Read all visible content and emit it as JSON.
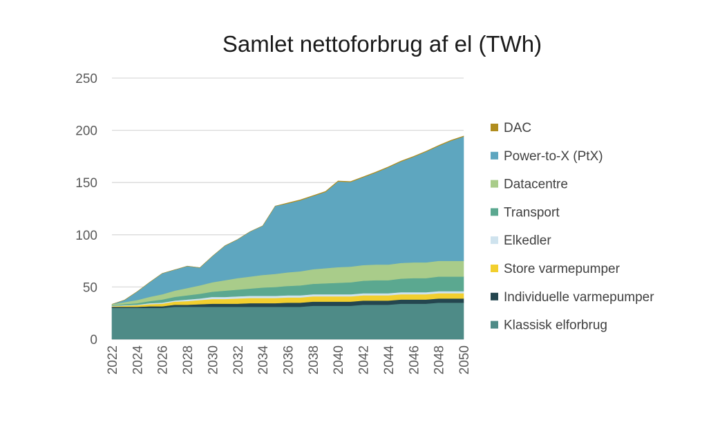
{
  "chart_data": {
    "type": "area",
    "stacked": true,
    "title": "Samlet nettoforbrug af el (TWh)",
    "xlabel": "",
    "ylabel": "",
    "x": [
      2022,
      2023,
      2024,
      2025,
      2026,
      2027,
      2028,
      2029,
      2030,
      2031,
      2032,
      2033,
      2034,
      2035,
      2036,
      2037,
      2038,
      2039,
      2040,
      2041,
      2042,
      2043,
      2044,
      2045,
      2046,
      2047,
      2048,
      2049,
      2050
    ],
    "x_tick_labels": [
      "2022",
      "2024",
      "2026",
      "2028",
      "2030",
      "2032",
      "2034",
      "2036",
      "2038",
      "2040",
      "2042",
      "2044",
      "2046",
      "2048",
      "2050"
    ],
    "ylim": [
      0,
      250
    ],
    "y_ticks": [
      0,
      50,
      100,
      150,
      200,
      250
    ],
    "grid": "horizontal",
    "legend_position": "right",
    "series": [
      {
        "name": "Klassisk elforbrug",
        "color": "#4e8b87",
        "values": [
          30,
          30,
          30,
          30,
          30,
          31,
          31,
          31,
          31,
          31,
          31,
          31,
          31,
          31,
          31,
          31,
          32,
          32,
          32,
          32,
          33,
          33,
          33,
          34,
          34,
          34,
          35,
          35,
          35
        ]
      },
      {
        "name": "Individuelle varmepumper",
        "color": "#24464f",
        "values": [
          1,
          1,
          1,
          1.5,
          1.5,
          2,
          2,
          2.5,
          3,
          3,
          3,
          3.5,
          3.5,
          3.5,
          4,
          4,
          4,
          4,
          4,
          4,
          4,
          4,
          4,
          4,
          4,
          4,
          4,
          4,
          4
        ]
      },
      {
        "name": "Store varmepumper",
        "color": "#f2cf2e",
        "values": [
          0.5,
          1,
          1.5,
          2,
          2.5,
          3,
          3.5,
          4,
          4.5,
          4.5,
          5,
          5,
          5,
          5,
          5,
          5,
          5,
          5,
          5,
          5,
          5,
          5,
          5,
          5,
          5,
          5,
          5,
          5,
          5
        ]
      },
      {
        "name": "Elkedler",
        "color": "#cfe3ee",
        "values": [
          0.5,
          0.5,
          0.5,
          1,
          1,
          1,
          1.5,
          1.5,
          2,
          2,
          2,
          2,
          2,
          2,
          2,
          2,
          2,
          2,
          2,
          2,
          2,
          2,
          2,
          2,
          2,
          2,
          2,
          2,
          2
        ]
      },
      {
        "name": "Transport",
        "color": "#5ba890",
        "values": [
          0.5,
          1,
          1.5,
          2,
          3,
          3.5,
          4,
          4.5,
          5,
          6,
          6.5,
          7,
          8,
          8.5,
          9,
          9.5,
          10,
          10.5,
          11,
          11.5,
          12,
          12.5,
          12.5,
          13,
          13.5,
          13.5,
          14,
          14,
          14
        ]
      },
      {
        "name": "Datacentre",
        "color": "#a9cc8a",
        "values": [
          1,
          2,
          3,
          4,
          5,
          6,
          7,
          8,
          9,
          10,
          11,
          11.5,
          12,
          12.5,
          13,
          13.5,
          14,
          14.5,
          15,
          15,
          15,
          15,
          15,
          15,
          15,
          15,
          15,
          15,
          15
        ]
      },
      {
        "name": "Power-to-X (PtX)",
        "color": "#5ea6bf",
        "values": [
          0,
          2,
          8,
          14,
          20,
          20,
          21,
          17,
          25,
          33,
          37,
          43,
          47,
          65,
          66,
          68,
          70,
          73,
          82,
          81,
          84,
          88,
          93,
          97,
          101,
          106,
          110,
          115,
          119
        ]
      },
      {
        "name": "DAC",
        "color": "#b08d1e",
        "values": [
          0,
          0,
          0,
          0,
          0,
          0,
          0,
          0,
          0,
          0,
          0,
          0,
          0,
          0,
          0.5,
          0.5,
          0.5,
          0.5,
          0.5,
          0.5,
          0.5,
          0.5,
          0.5,
          0.5,
          0.5,
          0.5,
          0.5,
          0.5,
          0.5
        ]
      }
    ]
  }
}
